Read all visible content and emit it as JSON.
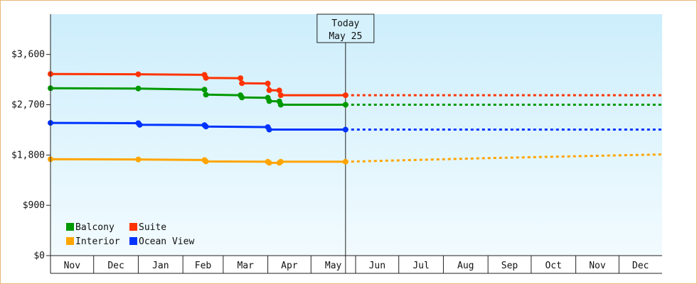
{
  "chart_data": {
    "type": "line",
    "title": "",
    "xlabel": "",
    "ylabel": "",
    "ylim": [
      0,
      4320
    ],
    "y_ticks": [
      {
        "value": 0,
        "label": "$0"
      },
      {
        "value": 900,
        "label": "$900"
      },
      {
        "value": 1800,
        "label": "$1,800"
      },
      {
        "value": 2700,
        "label": "$2,700"
      },
      {
        "value": 3600,
        "label": "$3,600"
      }
    ],
    "x_range": [
      "2022-11-01",
      "2023-12-31"
    ],
    "x_ticks": [
      "Nov",
      "Dec",
      "Jan",
      "Feb",
      "Mar",
      "Apr",
      "May",
      "Jun",
      "Jul",
      "Aug",
      "Sep",
      "Oct",
      "Nov",
      "Dec"
    ],
    "today": {
      "line1": "Today",
      "line2": "May 25",
      "date": "2023-05-25"
    },
    "legend": {
      "placement": "bottom-left"
    },
    "grid": false,
    "series": [
      {
        "name": "Balcony",
        "color": "#009900",
        "points": [
          [
            "2022-11-01",
            2995
          ],
          [
            "2023-01-01",
            2990
          ],
          [
            "2023-02-16",
            2970
          ],
          [
            "2023-02-17",
            2880
          ],
          [
            "2023-03-13",
            2870
          ],
          [
            "2023-03-14",
            2830
          ],
          [
            "2023-04-01",
            2825
          ],
          [
            "2023-04-02",
            2765
          ],
          [
            "2023-04-09",
            2760
          ],
          [
            "2023-04-10",
            2700
          ],
          [
            "2023-05-25",
            2700
          ]
        ],
        "forecast": [
          [
            "2023-05-25",
            2700
          ],
          [
            "2023-12-31",
            2700
          ]
        ]
      },
      {
        "name": "Suite",
        "color": "#ff3300",
        "points": [
          [
            "2022-11-01",
            3250
          ],
          [
            "2023-01-01",
            3245
          ],
          [
            "2023-02-16",
            3235
          ],
          [
            "2023-02-17",
            3180
          ],
          [
            "2023-03-13",
            3175
          ],
          [
            "2023-03-14",
            3085
          ],
          [
            "2023-04-01",
            3080
          ],
          [
            "2023-04-02",
            2960
          ],
          [
            "2023-04-09",
            2955
          ],
          [
            "2023-04-10",
            2870
          ],
          [
            "2023-05-25",
            2870
          ]
        ],
        "forecast": [
          [
            "2023-05-25",
            2870
          ],
          [
            "2023-12-31",
            2870
          ]
        ]
      },
      {
        "name": "Interior",
        "color": "#ffa500",
        "points": [
          [
            "2022-11-01",
            1725
          ],
          [
            "2023-01-01",
            1720
          ],
          [
            "2023-02-16",
            1710
          ],
          [
            "2023-02-17",
            1685
          ],
          [
            "2023-04-01",
            1680
          ],
          [
            "2023-04-02",
            1660
          ],
          [
            "2023-04-09",
            1660
          ],
          [
            "2023-04-10",
            1680
          ],
          [
            "2023-05-25",
            1680
          ]
        ],
        "forecast": [
          [
            "2023-05-25",
            1680
          ],
          [
            "2023-09-01",
            1745
          ],
          [
            "2023-12-31",
            1810
          ]
        ]
      },
      {
        "name": "Ocean View",
        "color": "#0033ff",
        "points": [
          [
            "2022-11-01",
            2375
          ],
          [
            "2023-01-01",
            2370
          ],
          [
            "2023-01-02",
            2340
          ],
          [
            "2023-02-16",
            2335
          ],
          [
            "2023-02-17",
            2310
          ],
          [
            "2023-04-01",
            2300
          ],
          [
            "2023-04-02",
            2255
          ],
          [
            "2023-05-25",
            2255
          ]
        ],
        "forecast": [
          [
            "2023-05-25",
            2255
          ],
          [
            "2023-12-31",
            2255
          ]
        ]
      }
    ]
  }
}
